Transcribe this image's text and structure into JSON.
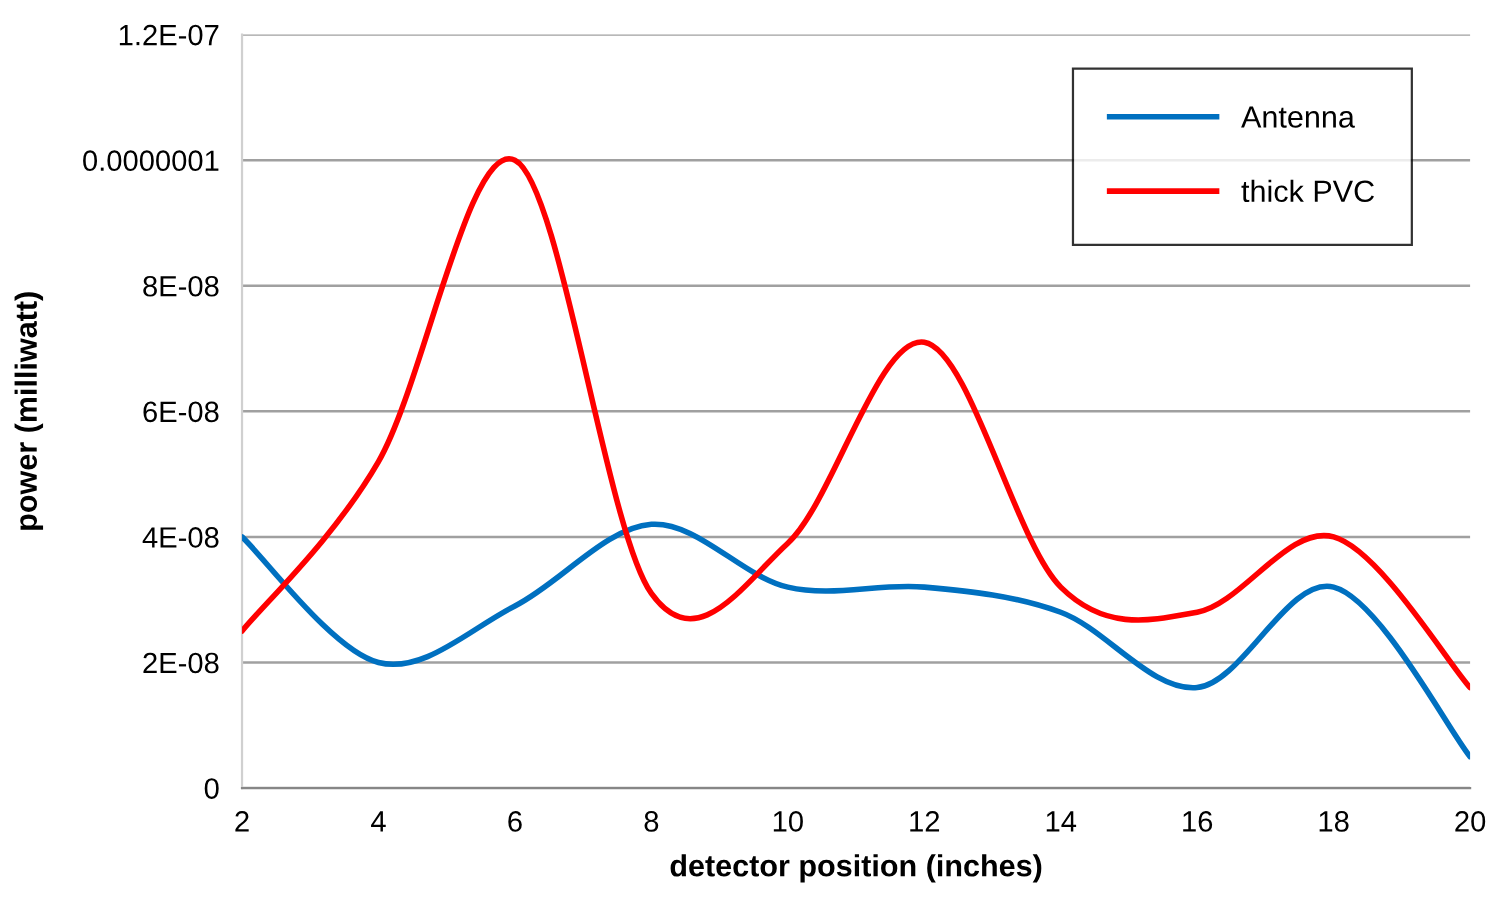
{
  "chart_data": {
    "type": "line",
    "xlabel": "detector position (inches)",
    "ylabel": "power (milliwatt)",
    "x": [
      2,
      4,
      6,
      8,
      10,
      12,
      14,
      16,
      18,
      20
    ],
    "series": [
      {
        "name": "Antenna",
        "color": "#0070c0",
        "values": [
          4e-08,
          2e-08,
          2.9e-08,
          4.2e-08,
          3.2e-08,
          3.2e-08,
          2.8e-08,
          1.6e-08,
          3.2e-08,
          5e-09
        ]
      },
      {
        "name": "thick PVC",
        "color": "#ff0000",
        "values": [
          2.5e-08,
          5.2e-08,
          1e-07,
          3.1e-08,
          3.9e-08,
          7.1e-08,
          3.2e-08,
          2.8e-08,
          4e-08,
          1.6e-08
        ]
      }
    ],
    "xlim": [
      2,
      20
    ],
    "xticks": [
      2,
      4,
      6,
      8,
      10,
      12,
      14,
      16,
      18,
      20
    ],
    "ylim": [
      0,
      1.2e-07
    ],
    "yticks": [
      0,
      {
        "value": 2e-08,
        "label": "2E-08"
      },
      {
        "value": 4e-08,
        "label": "4E-08"
      },
      {
        "value": 6e-08,
        "label": "6E-08"
      },
      {
        "value": 8e-08,
        "label": "8E-08"
      },
      {
        "value": 1e-07,
        "label": "0.0000001"
      },
      {
        "value": 1.2e-07,
        "label": "1.2E-07"
      }
    ],
    "grid": "y",
    "legend": "top right",
    "marker": "none",
    "line_style": "solid"
  }
}
